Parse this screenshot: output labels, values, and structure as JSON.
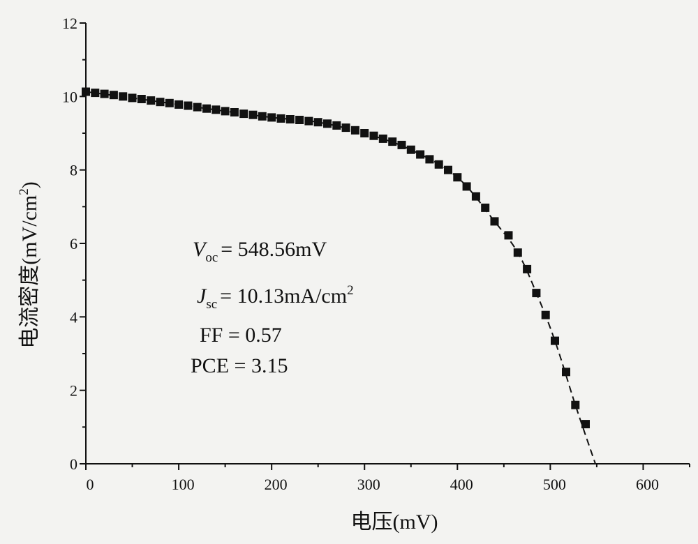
{
  "chart_data": {
    "type": "scatter",
    "title": "",
    "xlabel": "电压(mV)",
    "ylabel": {
      "prefix": "电流密度(mV/cm",
      "sup": "2",
      "suffix": ")"
    },
    "xlim": [
      0,
      650
    ],
    "ylim": [
      0,
      12
    ],
    "xticks": [
      "0",
      "100",
      "200",
      "300",
      "400",
      "500",
      "600"
    ],
    "yticks": [
      "0",
      "2",
      "4",
      "6",
      "8",
      "10",
      "12"
    ],
    "grid": false,
    "marker": "filled-square",
    "fit_line": "dashed",
    "annotations": {
      "voc": {
        "symbol": "V",
        "sub": "oc",
        "rest": "= 548.56mV"
      },
      "jsc": {
        "symbol": "J",
        "sub": "sc",
        "rest": "= 10.13mA/cm",
        "sup": "2"
      },
      "ff": "FF = 0.57",
      "pce": "PCE = 3.15"
    },
    "series": [
      {
        "values": [
          [
            0,
            10.13
          ],
          [
            10,
            10.1
          ],
          [
            20,
            10.07
          ],
          [
            30,
            10.04
          ],
          [
            40,
            10.0
          ],
          [
            50,
            9.96
          ],
          [
            60,
            9.93
          ],
          [
            70,
            9.89
          ],
          [
            80,
            9.85
          ],
          [
            90,
            9.82
          ],
          [
            100,
            9.78
          ],
          [
            110,
            9.75
          ],
          [
            120,
            9.71
          ],
          [
            130,
            9.67
          ],
          [
            140,
            9.64
          ],
          [
            150,
            9.6
          ],
          [
            160,
            9.57
          ],
          [
            170,
            9.53
          ],
          [
            180,
            9.5
          ],
          [
            190,
            9.46
          ],
          [
            200,
            9.43
          ],
          [
            210,
            9.4
          ],
          [
            220,
            9.38
          ],
          [
            230,
            9.36
          ],
          [
            240,
            9.33
          ],
          [
            250,
            9.3
          ],
          [
            260,
            9.26
          ],
          [
            270,
            9.21
          ],
          [
            280,
            9.15
          ],
          [
            290,
            9.08
          ],
          [
            300,
            9.0
          ],
          [
            310,
            8.93
          ],
          [
            320,
            8.85
          ],
          [
            330,
            8.77
          ],
          [
            340,
            8.68
          ],
          [
            350,
            8.55
          ],
          [
            360,
            8.42
          ],
          [
            370,
            8.29
          ],
          [
            380,
            8.15
          ],
          [
            390,
            8.0
          ],
          [
            400,
            7.8
          ],
          [
            410,
            7.55
          ],
          [
            420,
            7.28
          ],
          [
            430,
            6.97
          ],
          [
            440,
            6.6
          ],
          [
            455,
            6.22
          ],
          [
            465,
            5.75
          ],
          [
            475,
            5.3
          ],
          [
            485,
            4.65
          ],
          [
            495,
            4.05
          ],
          [
            505,
            3.35
          ],
          [
            517,
            2.5
          ],
          [
            527,
            1.6
          ],
          [
            538,
            1.08
          ]
        ]
      }
    ],
    "fit_curve": [
      [
        0,
        10.13
      ],
      [
        50,
        9.96
      ],
      [
        100,
        9.78
      ],
      [
        150,
        9.6
      ],
      [
        200,
        9.43
      ],
      [
        250,
        9.3
      ],
      [
        300,
        9.0
      ],
      [
        350,
        8.55
      ],
      [
        400,
        7.8
      ],
      [
        440,
        6.6
      ],
      [
        465,
        5.75
      ],
      [
        485,
        4.65
      ],
      [
        505,
        3.35
      ],
      [
        527,
        1.6
      ],
      [
        548.56,
        0
      ]
    ]
  }
}
